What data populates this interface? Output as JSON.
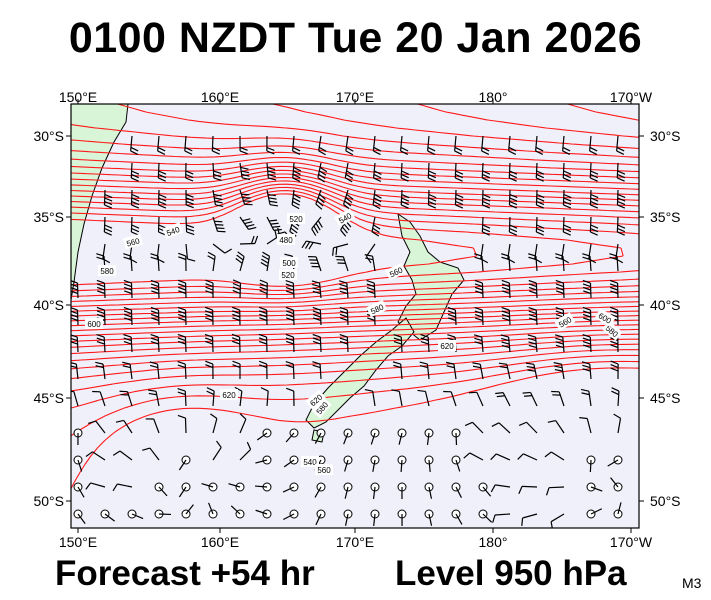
{
  "title": "0100 NZDT Tue 20 Jan 2026",
  "footer": {
    "forecast": "Forecast +54 hr",
    "level": "Level 950 hPa",
    "model": "M3"
  },
  "map": {
    "lon_range": [
      150,
      190
    ],
    "lat_range": [
      -28.5,
      -51.5
    ],
    "lon_labels": [
      "150°E",
      "160°E",
      "170°E",
      "180°",
      "170°W"
    ],
    "lat_labels": [
      "30°S",
      "35°S",
      "40°S",
      "45°S",
      "50°S"
    ],
    "colors": {
      "background": "#f0f0fb",
      "land": "#d8f5d8",
      "contour": "#ff1a1a",
      "coast": "#000000",
      "barb": "#000000"
    },
    "contour_labels": [
      "540",
      "560",
      "580",
      "560",
      "480",
      "500",
      "520",
      "540",
      "580",
      "560",
      "600",
      "620",
      "620",
      "620",
      "580",
      "600",
      "580",
      "520",
      "540",
      "560"
    ]
  }
}
